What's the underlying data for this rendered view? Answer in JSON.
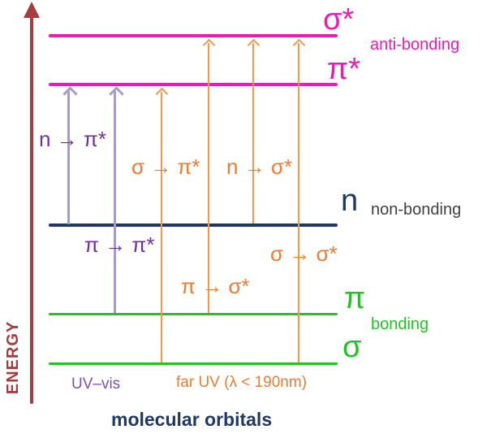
{
  "diagram_title": "molecular orbitals",
  "axis": {
    "label": "ENERGY"
  },
  "levels": [
    {
      "symbol": "σ*",
      "name": "sigma-star",
      "group": "anti-bonding",
      "color": "#ee1ab2"
    },
    {
      "symbol": "π*",
      "name": "pi-star",
      "group": "anti-bonding",
      "color": "#ee1ab2"
    },
    {
      "symbol": "n",
      "name": "n",
      "group": "non-bonding",
      "color": "#1f3864"
    },
    {
      "symbol": "π",
      "name": "pi",
      "group": "bonding",
      "color": "#1fc621"
    },
    {
      "symbol": "σ",
      "name": "sigma",
      "group": "bonding",
      "color": "#1fc621"
    }
  ],
  "groups": [
    {
      "label": "anti-bonding",
      "color": "#ee1ab2"
    },
    {
      "label": "non-bonding",
      "color": "#404040"
    },
    {
      "label": "bonding",
      "color": "#1fc621"
    }
  ],
  "transitions": [
    {
      "label": "n → π*",
      "from": "n",
      "to": "π*",
      "band": "UV–vis",
      "color": "#7030a0"
    },
    {
      "label": "π → π*",
      "from": "π",
      "to": "π*",
      "band": "UV–vis",
      "color": "#7030a0"
    },
    {
      "label": "σ → π*",
      "from": "σ",
      "to": "π*",
      "band": "far UV",
      "color": "#ed7d31"
    },
    {
      "label": "π → σ*",
      "from": "π",
      "to": "σ*",
      "band": "far UV",
      "color": "#ed7d31"
    },
    {
      "label": "n → σ*",
      "from": "n",
      "to": "σ*",
      "band": "far UV",
      "color": "#ed7d31"
    },
    {
      "label": "σ → σ*",
      "from": "σ",
      "to": "σ*",
      "band": "far UV",
      "color": "#ed7d31"
    }
  ],
  "legend": {
    "uv_vis": "UV–vis",
    "far_uv": "far UV (λ < 190nm)"
  },
  "colors": {
    "magenta": "#ee1ab2",
    "navy": "#1f3864",
    "green": "#1fc621",
    "orange_text": "#ed7d31",
    "orange_arrow": "#f69846",
    "purple_text": "#7030a0",
    "purple_arrow": "#a79bce",
    "purple_legend": "#7b52ae",
    "axis_red": "#a43d3d",
    "nonbonding_gray": "#404040"
  }
}
